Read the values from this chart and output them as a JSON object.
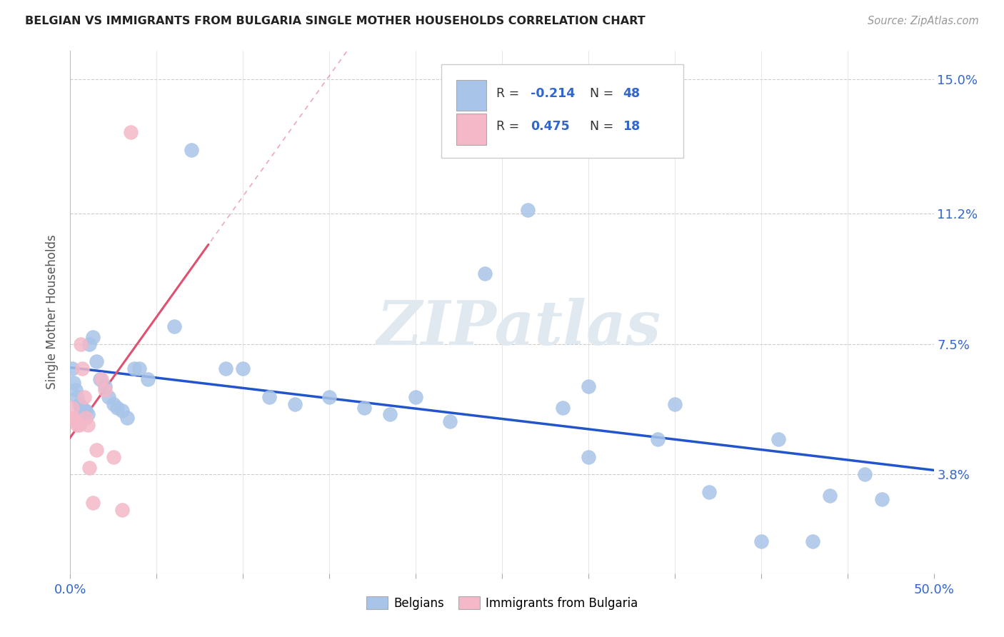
{
  "title": "BELGIAN VS IMMIGRANTS FROM BULGARIA SINGLE MOTHER HOUSEHOLDS CORRELATION CHART",
  "source": "Source: ZipAtlas.com",
  "ylabel": "Single Mother Households",
  "xlim": [
    0.0,
    0.5
  ],
  "ylim": [
    0.01,
    0.158
  ],
  "ytick_positions": [
    0.038,
    0.075,
    0.112,
    0.15
  ],
  "ytick_labels": [
    "3.8%",
    "7.5%",
    "11.2%",
    "15.0%"
  ],
  "belgian_color": "#a8c4e8",
  "bulgarian_color": "#f4b8c8",
  "trend_belgian_color": "#2255cc",
  "trend_bulgarian_color": "#e05070",
  "background_color": "#ffffff",
  "watermark_text": "ZIPatlas",
  "bel_x": [
    0.001,
    0.002,
    0.003,
    0.004,
    0.005,
    0.006,
    0.007,
    0.008,
    0.009,
    0.01,
    0.011,
    0.013,
    0.015,
    0.017,
    0.02,
    0.022,
    0.025,
    0.027,
    0.03,
    0.033,
    0.037,
    0.04,
    0.045,
    0.06,
    0.07,
    0.09,
    0.1,
    0.115,
    0.13,
    0.15,
    0.17,
    0.185,
    0.2,
    0.22,
    0.24,
    0.265,
    0.285,
    0.3,
    0.34,
    0.37,
    0.4,
    0.43,
    0.46,
    0.3,
    0.35,
    0.41,
    0.44,
    0.47
  ],
  "bel_y": [
    0.068,
    0.064,
    0.062,
    0.06,
    0.058,
    0.057,
    0.057,
    0.056,
    0.056,
    0.055,
    0.075,
    0.077,
    0.07,
    0.065,
    0.063,
    0.06,
    0.058,
    0.057,
    0.056,
    0.054,
    0.068,
    0.068,
    0.065,
    0.08,
    0.13,
    0.068,
    0.068,
    0.06,
    0.058,
    0.06,
    0.057,
    0.055,
    0.06,
    0.053,
    0.095,
    0.113,
    0.057,
    0.043,
    0.048,
    0.033,
    0.019,
    0.019,
    0.038,
    0.063,
    0.058,
    0.048,
    0.032,
    0.031
  ],
  "bul_x": [
    0.001,
    0.002,
    0.003,
    0.004,
    0.005,
    0.006,
    0.007,
    0.008,
    0.009,
    0.01,
    0.011,
    0.013,
    0.015,
    0.018,
    0.02,
    0.025,
    0.03,
    0.035
  ],
  "bul_y": [
    0.057,
    0.054,
    0.053,
    0.052,
    0.052,
    0.075,
    0.068,
    0.06,
    0.054,
    0.052,
    0.04,
    0.03,
    0.045,
    0.065,
    0.062,
    0.043,
    0.028,
    0.135
  ]
}
